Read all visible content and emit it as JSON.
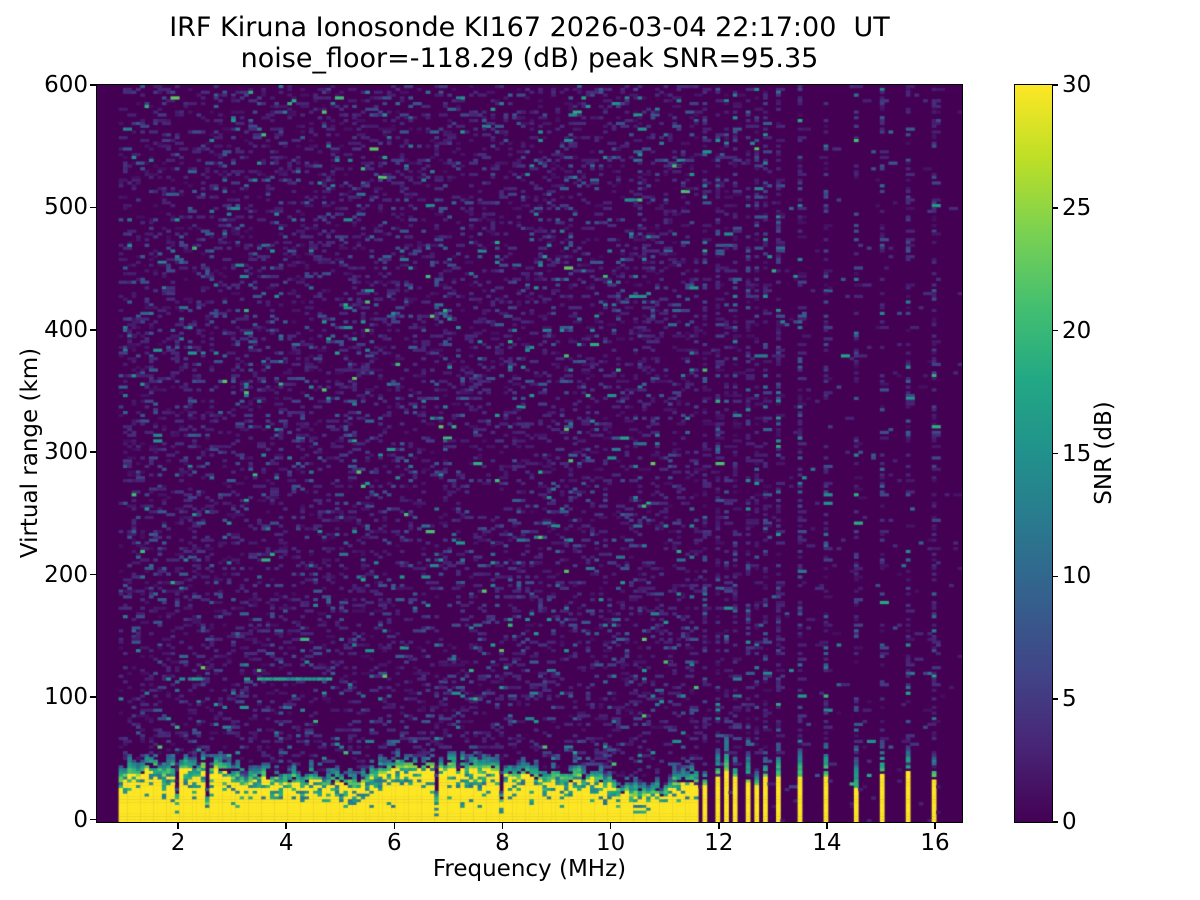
{
  "chart_data": {
    "type": "heatmap",
    "title": "IRF Kiruna Ionosonde KI167 2026-03-04 22:17:00  UT",
    "subtitle": "noise_floor=-118.29 (dB) peak SNR=95.35",
    "station": "IRF Kiruna Ionosonde KI167",
    "datetime_ut": "2026-03-04 22:17:00",
    "noise_floor_db": -118.29,
    "peak_snr_db": 95.35,
    "xlabel": "Frequency (MHz)",
    "ylabel": "Virtual range (km)",
    "xlim": [
      0.5,
      16.5
    ],
    "ylim": [
      -2,
      600
    ],
    "xticks": [
      2,
      4,
      6,
      8,
      10,
      12,
      14,
      16
    ],
    "yticks": [
      0,
      100,
      200,
      300,
      400,
      500,
      600
    ],
    "grid": false,
    "legend": "none",
    "colorbar": {
      "label": "SNR (dB)",
      "ticks": [
        0,
        5,
        10,
        15,
        20,
        25,
        30
      ],
      "min": 0,
      "max": 30,
      "colormap": "viridis"
    },
    "colors": {
      "figure_background": "#ffffff",
      "text": "#000000",
      "heatmap_background": "#440154",
      "saturated_signal": "#fde725",
      "viridis_stops": [
        "#440154",
        "#482475",
        "#414487",
        "#355f8d",
        "#2a788e",
        "#21918c",
        "#22a884",
        "#44bf70",
        "#7ad151",
        "#bddf26",
        "#fde725"
      ]
    },
    "features": {
      "description": "Ionogram: dark viridis noise field with saturated yellow ground-clutter band below ~45 km, discrete sounding-frequency stripes above 11.6 MHz, faint teal echo trace near 114 km around 3-4.7 MHz",
      "no_sounding_below_mhz": 0.93,
      "ground_clutter_band": {
        "freq_mhz": [
          0.93,
          11.63
        ],
        "virtual_range_km": [
          0,
          45
        ],
        "snr_db": 30
      },
      "discrete_sounding_freqs_mhz": [
        11.77,
        11.96,
        12.14,
        12.33,
        12.51,
        12.7,
        12.88,
        13.06,
        13.52,
        14.0,
        14.5,
        15.0,
        15.5,
        16.0
      ],
      "echo_traces": [
        {
          "freq_mhz": [
            3.2,
            4.72
          ],
          "virtual_range_km": 114,
          "fill": 0.85,
          "snr_db": [
            13,
            19
          ]
        },
        {
          "freq_mhz": [
            2.0,
            2.6
          ],
          "virtual_range_km": 116,
          "fill": 0.5,
          "snr_db": [
            12,
            17
          ]
        }
      ]
    },
    "render": {
      "seed": 1337,
      "grid_cols": 200,
      "grid_rows": 260,
      "noise": {
        "p_band": 0.2,
        "p_quiet": 0.02,
        "p_stripe_base": 0.3,
        "p_stripe_var": 0.25
      },
      "band": {
        "f_min": 0.93,
        "f_max": 11.63,
        "base_top_km": 34,
        "notch_p": 0.05,
        "streak_p": 0.055
      }
    }
  }
}
